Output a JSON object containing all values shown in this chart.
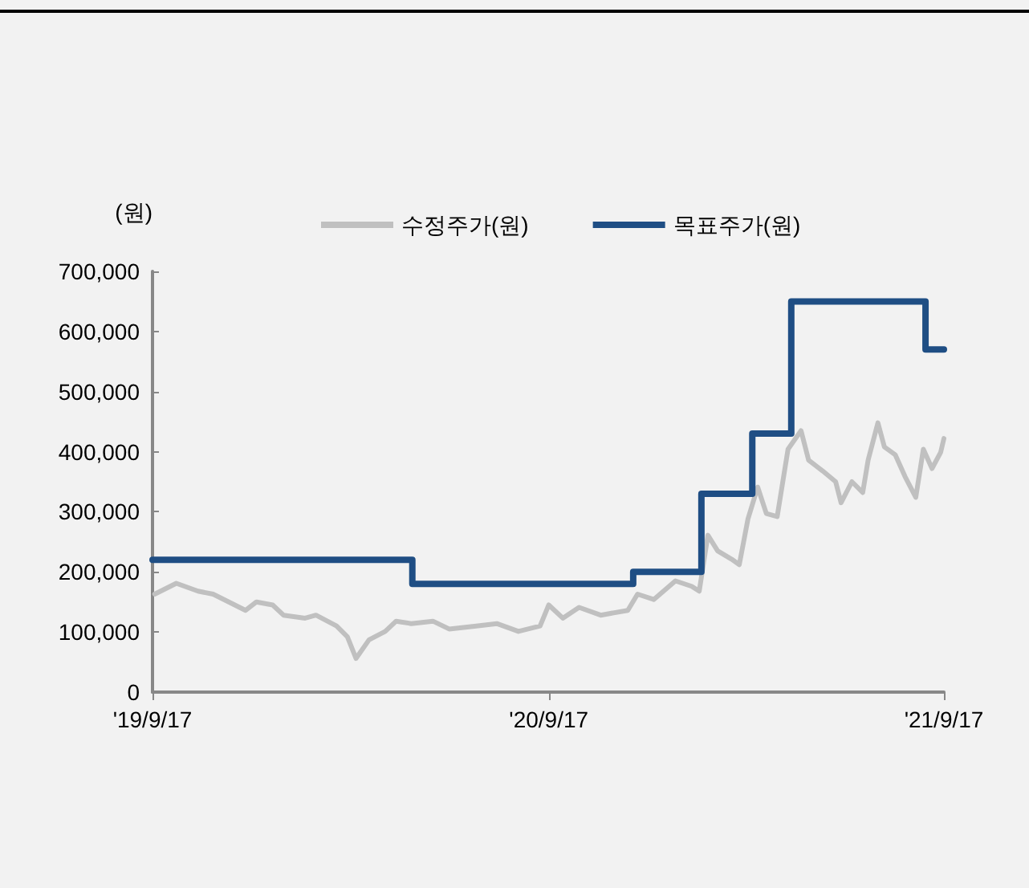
{
  "chart_data": {
    "type": "line",
    "ylabel": "(원)",
    "legend": "top",
    "marker": "none",
    "line_style": "solid",
    "grid": false,
    "xlim": [
      "2019-09-17",
      "2021-09-17"
    ],
    "xticks": [
      {
        "value": "2019-09-17",
        "label": "'19/9/17"
      },
      {
        "value": "2020-09-17",
        "label": "'20/9/17"
      },
      {
        "value": "2021-09-17",
        "label": "'21/9/17"
      }
    ],
    "ylim": [
      0,
      700000
    ],
    "yticks": [
      {
        "value": 0,
        "label": "0"
      },
      {
        "value": 100000,
        "label": "100,000"
      },
      {
        "value": 200000,
        "label": "200,000"
      },
      {
        "value": 300000,
        "label": "300,000"
      },
      {
        "value": 400000,
        "label": "400,000"
      },
      {
        "value": 500000,
        "label": "500,000"
      },
      {
        "value": 600000,
        "label": "600,000"
      },
      {
        "value": 700000,
        "label": "700,000"
      }
    ],
    "series": [
      {
        "name": "수정주가(원)",
        "color": "#c0c0c0",
        "x": [
          "2019-09-19",
          "2019-10-09",
          "2019-10-29",
          "2019-11-12",
          "2019-12-12",
          "2019-12-22",
          "2020-01-06",
          "2020-01-16",
          "2020-02-05",
          "2020-02-15",
          "2020-03-05",
          "2020-03-15",
          "2020-03-23",
          "2020-04-04",
          "2020-04-19",
          "2020-04-29",
          "2020-05-13",
          "2020-06-02",
          "2020-06-17",
          "2020-07-12",
          "2020-07-31",
          "2020-08-20",
          "2020-09-09",
          "2020-09-17",
          "2020-09-30",
          "2020-10-15",
          "2020-11-04",
          "2020-11-29",
          "2020-12-08",
          "2020-12-23",
          "2021-01-12",
          "2021-01-27",
          "2021-02-03",
          "2021-02-11",
          "2021-02-20",
          "2021-03-05",
          "2021-03-12",
          "2021-03-20",
          "2021-03-29",
          "2021-04-06",
          "2021-04-16",
          "2021-04-26",
          "2021-05-08",
          "2021-05-15",
          "2021-05-28",
          "2021-06-09",
          "2021-06-14",
          "2021-06-24",
          "2021-07-04",
          "2021-07-09",
          "2021-07-18",
          "2021-07-24",
          "2021-08-03",
          "2021-08-12",
          "2021-08-22",
          "2021-08-29",
          "2021-09-06",
          "2021-09-14",
          "2021-09-17"
        ],
        "values": [
          163000,
          181000,
          168000,
          163000,
          136000,
          150000,
          145000,
          128000,
          123000,
          128000,
          110000,
          92000,
          56000,
          87000,
          101000,
          118000,
          114000,
          118000,
          105000,
          110000,
          114000,
          101000,
          110000,
          145000,
          123000,
          141000,
          128000,
          136000,
          163000,
          154000,
          185000,
          176000,
          168000,
          261000,
          235000,
          221000,
          212000,
          288000,
          341000,
          297000,
          292000,
          404000,
          435000,
          386000,
          368000,
          350000,
          315000,
          350000,
          332000,
          386000,
          448000,
          408000,
          395000,
          359000,
          324000,
          404000,
          372000,
          399000,
          422000
        ]
      },
      {
        "name": "목표주가(원)",
        "type": "step",
        "color": "#1f4e84",
        "x": [
          "2019-09-17",
          "2020-05-14",
          "2020-12-04",
          "2021-02-05",
          "2021-03-24",
          "2021-04-29",
          "2021-08-31",
          "2021-09-17"
        ],
        "values": [
          220000,
          180000,
          200000,
          330000,
          430000,
          650000,
          570000,
          570000
        ]
      }
    ]
  }
}
